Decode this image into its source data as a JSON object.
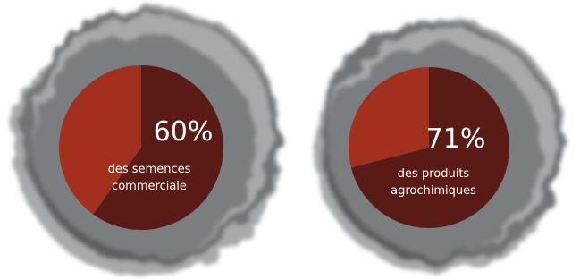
{
  "chart_data": [
    {
      "type": "pie",
      "categories": [
        "des semences commerciale",
        null
      ],
      "values": [
        60,
        40
      ],
      "value_labels": [
        "60%",
        null
      ],
      "colors": [
        "#5a1a16",
        "#a3301f"
      ]
    },
    {
      "type": "pie",
      "categories": [
        "des produits agrochimiques",
        null
      ],
      "values": [
        71,
        29
      ],
      "value_labels": [
        "71%",
        null
      ],
      "colors": [
        "#5a1a16",
        "#a3301f"
      ]
    }
  ]
}
